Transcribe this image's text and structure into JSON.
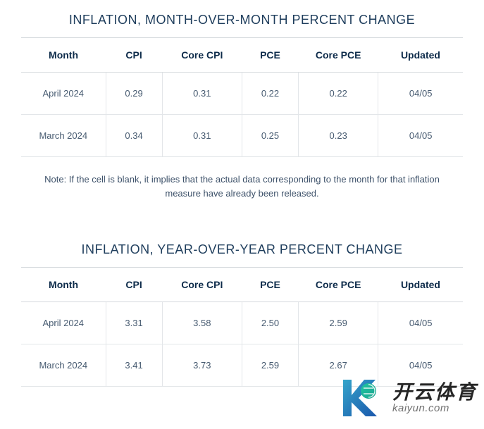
{
  "colors": {
    "heading": "#1e3d5c",
    "header_text": "#0d2b4a",
    "cell_text": "#465a70",
    "border": "#e3e6e9",
    "header_border": "#d5d9dd",
    "background": "#ffffff"
  },
  "typography": {
    "title_fontsize": 18,
    "header_fontsize": 14,
    "cell_fontsize": 13,
    "note_fontsize": 13
  },
  "tables": [
    {
      "title": "INFLATION, MONTH-OVER-MONTH PERCENT CHANGE",
      "columns": [
        "Month",
        "CPI",
        "Core CPI",
        "PCE",
        "Core PCE",
        "Updated"
      ],
      "rows": [
        [
          "April 2024",
          "0.29",
          "0.31",
          "0.22",
          "0.22",
          "04/05"
        ],
        [
          "March 2024",
          "0.34",
          "0.31",
          "0.25",
          "0.23",
          "04/05"
        ]
      ],
      "note": "Note: If the cell is blank, it implies that the actual data corresponding to the month for that inflation measure have already been released."
    },
    {
      "title": "INFLATION, YEAR-OVER-YEAR PERCENT CHANGE",
      "columns": [
        "Month",
        "CPI",
        "Core CPI",
        "PCE",
        "Core PCE",
        "Updated"
      ],
      "rows": [
        [
          "April 2024",
          "3.31",
          "3.58",
          "2.50",
          "2.59",
          "04/05"
        ],
        [
          "March 2024",
          "3.41",
          "3.73",
          "2.59",
          "2.67",
          "04/05"
        ]
      ],
      "note": null
    }
  ],
  "watermark": {
    "logo_colors": [
      "#2aa0c8",
      "#0f4fa8",
      "#15c29b"
    ],
    "top_text": "开云体育",
    "bottom_text": "kaiyun.com"
  }
}
